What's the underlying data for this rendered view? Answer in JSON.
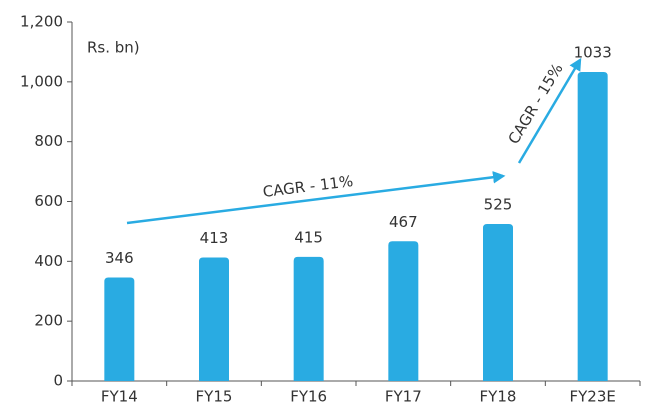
{
  "chart_data": {
    "type": "bar",
    "unit_label": "Rs. bn)",
    "categories": [
      "FY14",
      "FY15",
      "FY16",
      "FY17",
      "FY18",
      "FY23E"
    ],
    "values": [
      346,
      413,
      415,
      467,
      525,
      1033
    ],
    "color": "#29abe2",
    "ylim": [
      0,
      1200
    ],
    "yticks": [
      0,
      200,
      400,
      600,
      800,
      {
        "value": 1000,
        "label": "1,000"
      },
      {
        "value": 1200,
        "label": "1,200"
      }
    ],
    "annotations": [
      "CAGR - 11%",
      "CAGR - 15%"
    ],
    "annotation_color": "#29abe2"
  }
}
